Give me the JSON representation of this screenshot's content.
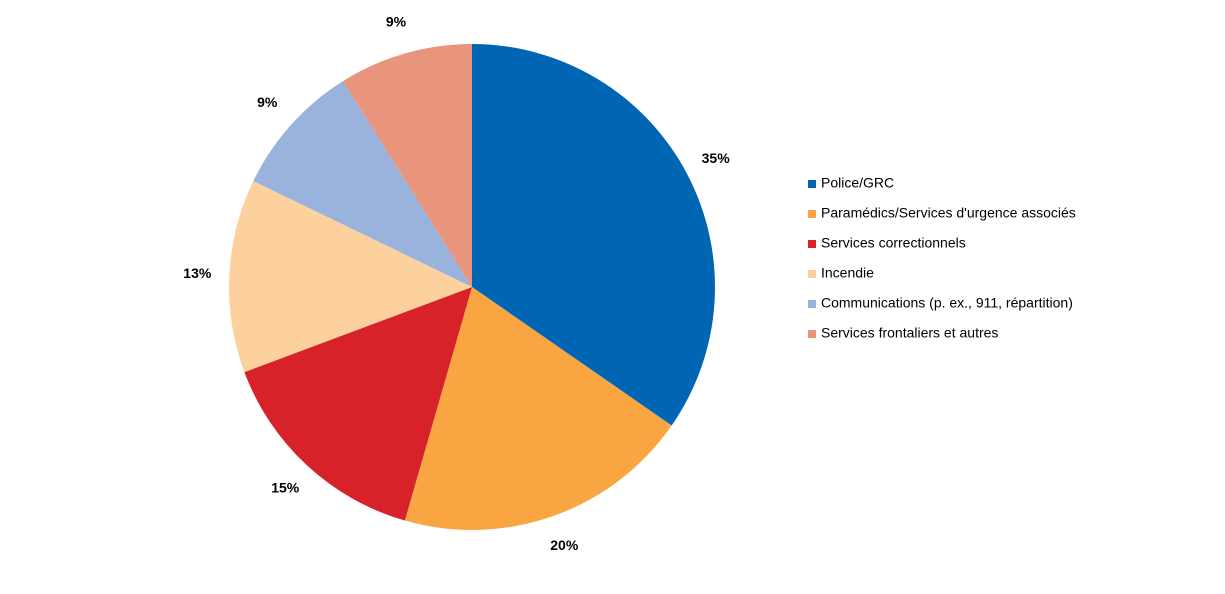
{
  "chart_data": {
    "type": "pie",
    "categories": [
      "Police/GRC",
      "Paramédics/Services d'urgence associés",
      "Services correctionnels",
      "Incendie",
      "Communications (p. ex., 911, répartition)",
      "Services frontaliers et autres"
    ],
    "values": [
      35,
      20,
      15,
      13,
      9,
      9
    ],
    "value_labels": [
      "35%",
      "20%",
      "15%",
      "13%",
      "9%",
      "9%"
    ],
    "colors": [
      "#0066b3",
      "#f9a541",
      "#d7222a",
      "#fdd19d",
      "#9ab3dc",
      "#e9957d"
    ],
    "legend": "right"
  }
}
